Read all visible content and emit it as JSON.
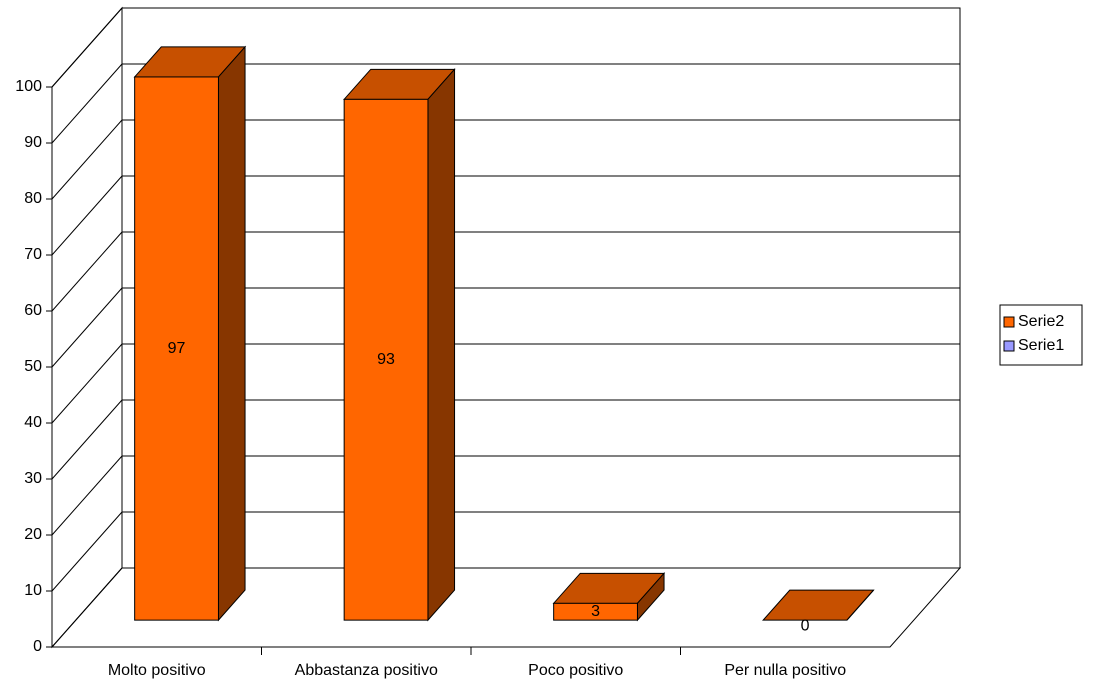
{
  "chart_data": {
    "type": "bar3d",
    "categories": [
      "Molto positivo",
      "Abbastanza positivo",
      "Poco positivo",
      "Per nulla positivo"
    ],
    "series": [
      {
        "name": "Serie2",
        "color": "#FF6600",
        "values": [
          97,
          93,
          3,
          0
        ]
      },
      {
        "name": "Serie1",
        "color": "#9999FF",
        "values": [
          null,
          null,
          null,
          null
        ]
      }
    ],
    "ylim": [
      0,
      100
    ],
    "yticks": [
      0,
      10,
      20,
      30,
      40,
      50,
      60,
      70,
      80,
      90,
      100
    ],
    "grid": true,
    "legend": "right"
  }
}
